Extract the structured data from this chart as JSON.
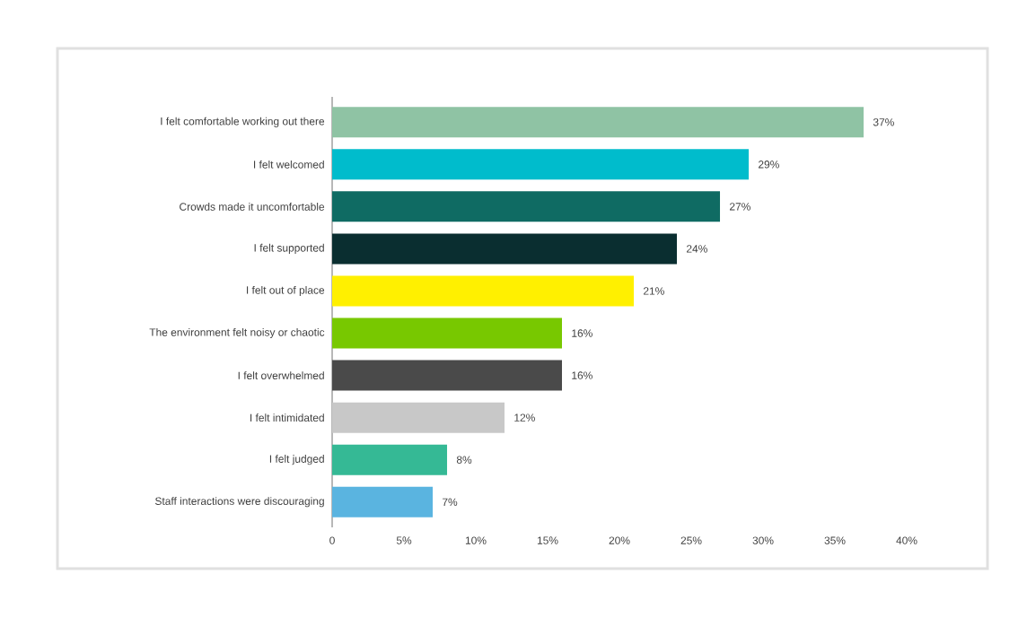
{
  "chart_data": {
    "type": "bar",
    "orientation": "horizontal",
    "categories": [
      "I felt comfortable working out there",
      "I felt welcomed",
      "Crowds made it uncomfortable",
      "I felt supported",
      "I felt out of place",
      "The environment felt noisy or chaotic",
      "I felt overwhelmed",
      "I felt intimidated",
      "I felt judged",
      "Staff interactions were discouraging"
    ],
    "values": [
      37,
      29,
      27,
      24,
      21,
      16,
      16,
      12,
      8,
      7
    ],
    "value_labels": [
      "37%",
      "29%",
      "27%",
      "24%",
      "21%",
      "16%",
      "16%",
      "12%",
      "8%",
      "7%"
    ],
    "colors": [
      "#8fc3a4",
      "#00bccc",
      "#0f6b63",
      "#0a2e30",
      "#fff000",
      "#78c800",
      "#4a4a4a",
      "#c8c8c8",
      "#35b995",
      "#5ab4e0"
    ],
    "xlim": [
      0,
      40
    ],
    "xticks": [
      0,
      {
        "value": 5,
        "label": "5%"
      },
      {
        "value": 10,
        "label": "10%"
      },
      {
        "value": 15,
        "label": "15%"
      },
      {
        "value": 20,
        "label": "20%"
      },
      {
        "value": 25,
        "label": "25%"
      },
      {
        "value": 30,
        "label": "30%"
      },
      {
        "value": 35,
        "label": "35%"
      },
      {
        "value": 40,
        "label": "40%"
      }
    ],
    "xlabel": null
  }
}
